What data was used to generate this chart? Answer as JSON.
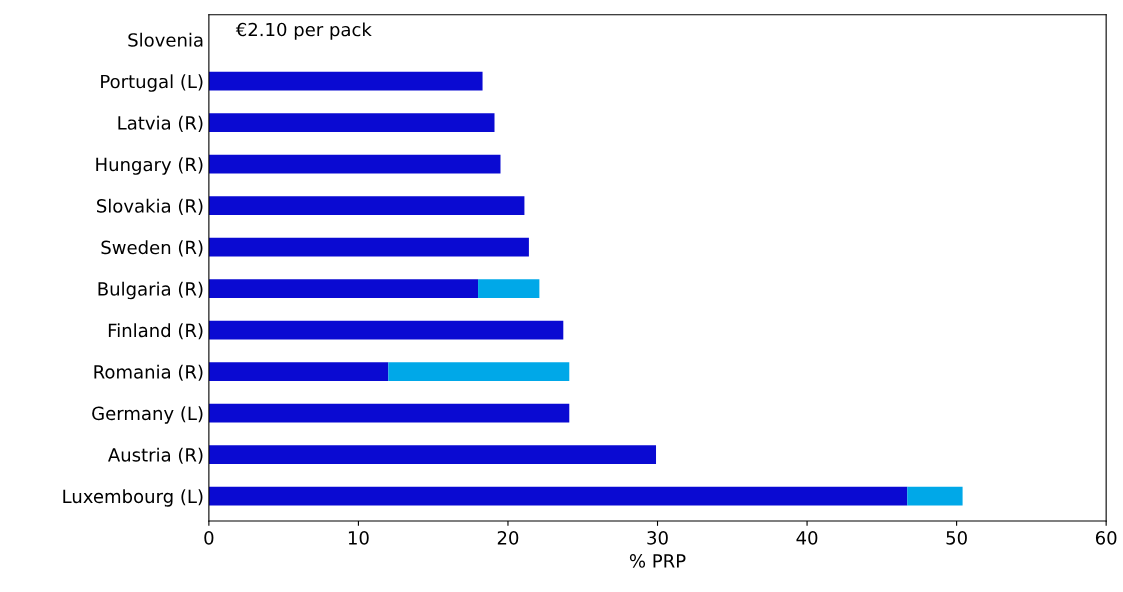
{
  "chart_data": {
    "type": "bar",
    "orientation": "horizontal",
    "stacked": true,
    "categories": [
      "Slovenia",
      "Portugal (L)",
      "Latvia (R)",
      "Hungary (R)",
      "Slovakia (R)",
      "Sweden (R)",
      "Bulgaria (R)",
      "Finland (R)",
      "Romania (R)",
      "Germany (L)",
      "Austria (R)",
      "Luxembourg (L)"
    ],
    "series": [
      {
        "color": "#0a0ad2",
        "values": [
          null,
          18.3,
          19.1,
          19.5,
          21.1,
          21.4,
          18.0,
          23.7,
          12.0,
          24.1,
          29.9,
          46.7
        ]
      },
      {
        "color": "#00a8e8",
        "values": [
          null,
          null,
          null,
          null,
          null,
          null,
          4.1,
          null,
          12.1,
          null,
          null,
          3.7
        ]
      }
    ],
    "xlabel": "% PRP",
    "xlim": [
      0,
      60
    ],
    "xticks": [
      0,
      10,
      20,
      30,
      40,
      50,
      60
    ],
    "grid": false,
    "legend": false,
    "annotations": [
      "€2.10 per pack"
    ]
  }
}
